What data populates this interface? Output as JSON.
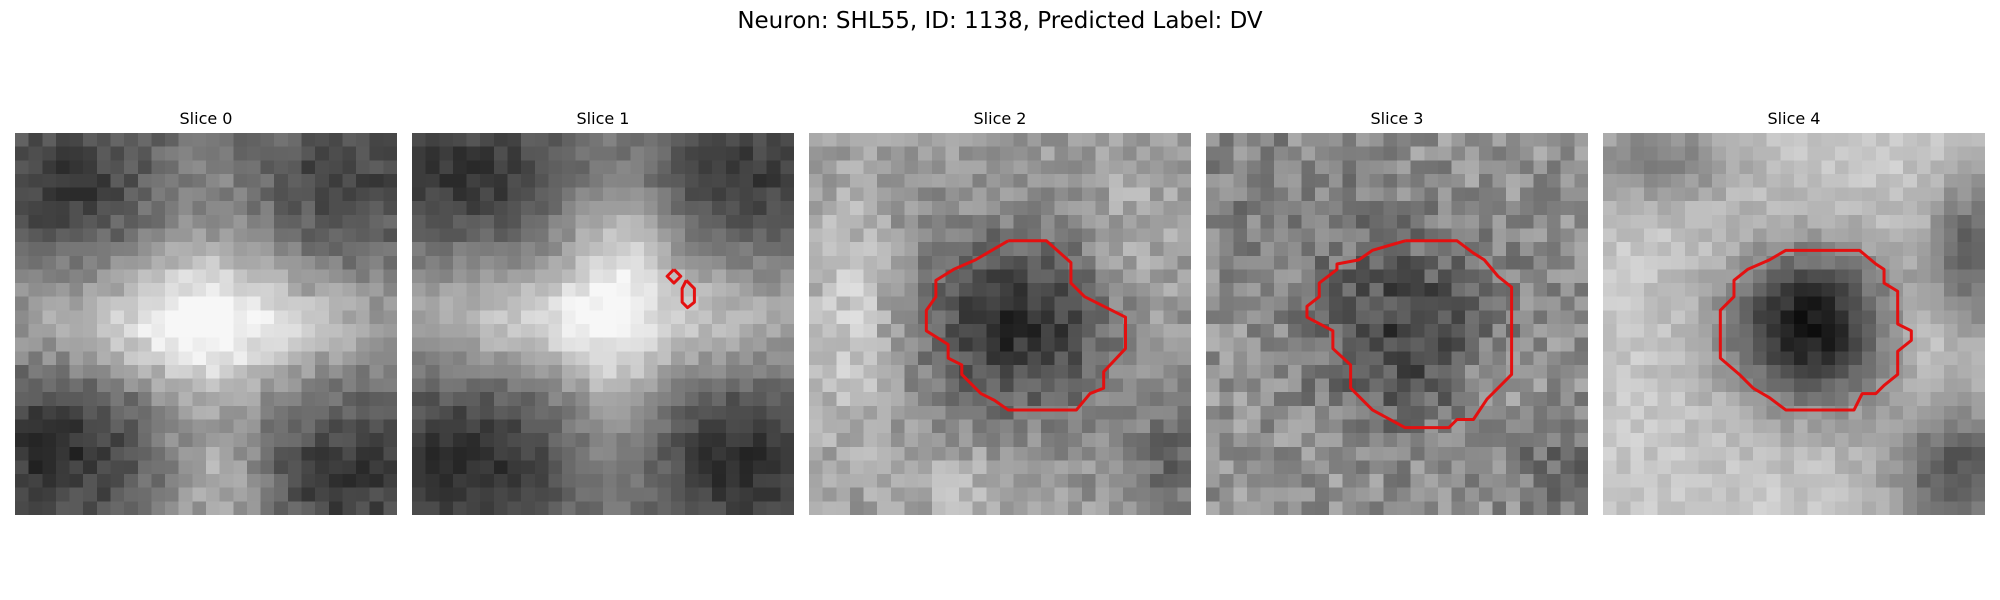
{
  "figure": {
    "title": "Neuron: SHL55, ID: 1138, Predicted Label: DV"
  },
  "slices": [
    {
      "label": "Slice 0",
      "contour": []
    },
    {
      "label": "Slice 1",
      "contour": [
        [
          [
            19.2,
            10.0
          ],
          [
            19.7,
            10.5
          ],
          [
            19.2,
            11.0
          ],
          [
            18.7,
            10.5
          ],
          [
            19.2,
            10.0
          ]
        ],
        [
          [
            20.1,
            10.8
          ],
          [
            20.7,
            11.4
          ],
          [
            20.7,
            12.4
          ],
          [
            20.2,
            12.8
          ],
          [
            19.8,
            12.4
          ],
          [
            19.8,
            11.4
          ],
          [
            20.1,
            10.8
          ]
        ]
      ]
    },
    {
      "label": "Slice 2",
      "contour": [
        [
          [
            14.6,
            7.9
          ],
          [
            17.4,
            7.9
          ],
          [
            19.2,
            9.5
          ],
          [
            19.2,
            11.0
          ],
          [
            20.2,
            12.0
          ],
          [
            23.2,
            13.5
          ],
          [
            23.2,
            15.8
          ],
          [
            21.6,
            17.5
          ],
          [
            21.6,
            18.7
          ],
          [
            20.6,
            19.1
          ],
          [
            19.6,
            20.3
          ],
          [
            14.6,
            20.3
          ],
          [
            13.6,
            19.6
          ],
          [
            12.6,
            19.1
          ],
          [
            11.2,
            17.7
          ],
          [
            11.2,
            17.0
          ],
          [
            10.2,
            16.5
          ],
          [
            10.2,
            15.5
          ],
          [
            8.6,
            14.5
          ],
          [
            8.6,
            13.0
          ],
          [
            9.3,
            12.0
          ],
          [
            9.3,
            10.8
          ],
          [
            10.6,
            10.0
          ],
          [
            12.2,
            9.3
          ],
          [
            13.4,
            8.6
          ],
          [
            14.6,
            7.9
          ]
        ]
      ]
    },
    {
      "label": "Slice 3",
      "contour": [
        [
          [
            14.6,
            7.9
          ],
          [
            18.4,
            7.9
          ],
          [
            19.6,
            8.8
          ],
          [
            20.4,
            9.3
          ],
          [
            21.4,
            10.5
          ],
          [
            22.4,
            11.3
          ],
          [
            22.4,
            17.7
          ],
          [
            20.6,
            19.5
          ],
          [
            19.6,
            21.0
          ],
          [
            18.4,
            21.0
          ],
          [
            17.8,
            21.6
          ],
          [
            14.6,
            21.6
          ],
          [
            12.2,
            20.3
          ],
          [
            10.6,
            18.7
          ],
          [
            10.6,
            17.0
          ],
          [
            9.3,
            15.8
          ],
          [
            9.3,
            14.5
          ],
          [
            7.4,
            13.5
          ],
          [
            7.4,
            12.7
          ],
          [
            8.3,
            12.0
          ],
          [
            8.3,
            11.0
          ],
          [
            9.6,
            10.0
          ],
          [
            9.6,
            9.6
          ],
          [
            11.2,
            9.3
          ],
          [
            12.2,
            8.6
          ],
          [
            14.6,
            7.9
          ]
        ]
      ]
    },
    {
      "label": "Slice 4",
      "contour": [
        [
          [
            15.0,
            8.6
          ],
          [
            18.8,
            8.6
          ],
          [
            20.0,
            9.6
          ],
          [
            20.6,
            10.0
          ],
          [
            20.6,
            11.0
          ],
          [
            21.6,
            11.6
          ],
          [
            21.6,
            14.0
          ],
          [
            22.6,
            14.5
          ],
          [
            22.6,
            15.2
          ],
          [
            21.6,
            16.0
          ],
          [
            21.6,
            17.7
          ],
          [
            20.6,
            18.5
          ],
          [
            20.0,
            19.1
          ],
          [
            19.0,
            19.1
          ],
          [
            18.4,
            20.3
          ],
          [
            13.4,
            20.3
          ],
          [
            12.2,
            19.4
          ],
          [
            11.0,
            18.7
          ],
          [
            10.0,
            17.7
          ],
          [
            8.6,
            16.5
          ],
          [
            8.6,
            13.0
          ],
          [
            9.6,
            12.0
          ],
          [
            9.6,
            10.8
          ],
          [
            10.6,
            10.0
          ],
          [
            12.2,
            9.3
          ],
          [
            13.4,
            8.6
          ],
          [
            15.0,
            8.6
          ]
        ]
      ]
    }
  ],
  "contour_color": "#e41010",
  "grid_size": 28
}
